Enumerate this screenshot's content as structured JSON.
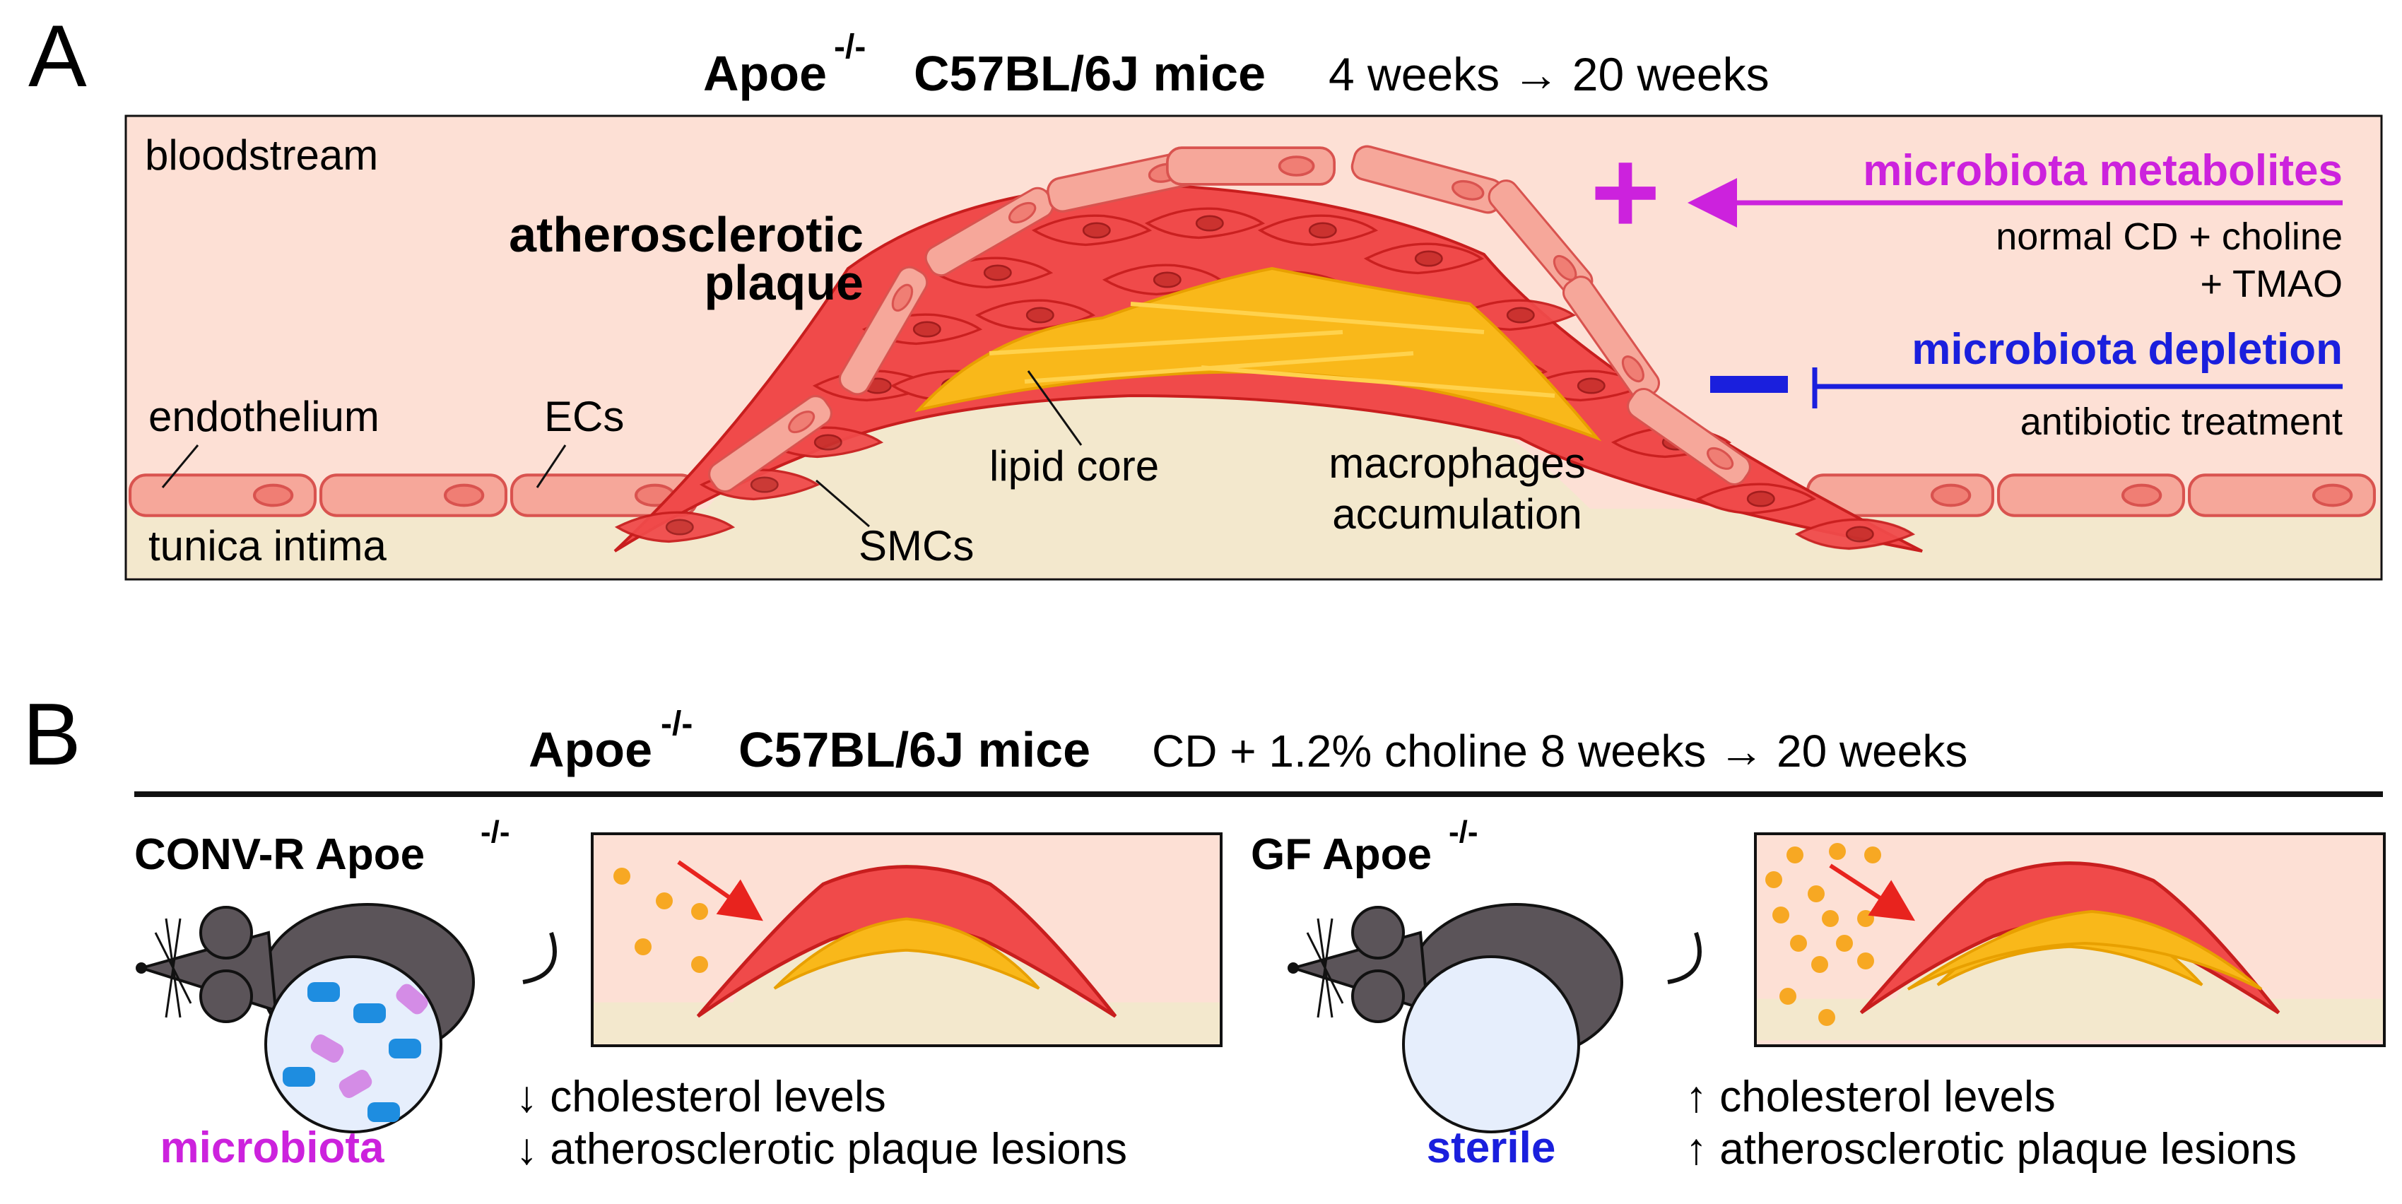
{
  "panelA": {
    "letter": "A",
    "title_bold": "Apoe",
    "title_sup": "-/-",
    "title_strain": "C57BL/6J mice",
    "title_time": "4 weeks → 20 weeks",
    "bloodstream": "bloodstream",
    "plaque_line1": "atherosclerotic",
    "plaque_line2": "plaque",
    "endothelium": "endothelium",
    "ecs": "ECs",
    "tunica": "tunica intima",
    "smcs": "SMCs",
    "lipid_core": "lipid core",
    "macro_line1": "macrophages",
    "macro_line2": "accumulation",
    "plus_sign": "+",
    "metabolites": "microbiota metabolites",
    "metab_sub1": "normal CD + choline",
    "metab_sub2": "+ TMAO",
    "minus_sign": "−",
    "depletion": "microbiota depletion",
    "depl_sub": "antibiotic treatment"
  },
  "panelB": {
    "letter": "B",
    "title_bold": "Apoe",
    "title_sup": "-/-",
    "title_strain": "C57BL/6J mice",
    "title_time": "CD + 1.2% choline 8 weeks → 20 weeks",
    "conv_label": "CONV-R Apoe",
    "conv_sup": "-/-",
    "gf_label": "GF Apoe",
    "gf_sup": "-/-",
    "microbiota": "microbiota",
    "sterile": "sterile",
    "conv_effect1": "↓ cholesterol levels",
    "conv_effect2": "↓ atherosclerotic plaque lesions",
    "gf_effect1": "↑ cholesterol levels",
    "gf_effect2": "↑ atherosclerotic plaque lesions"
  },
  "colors": {
    "lumen": "#fde0d5",
    "intima": "#f3e8cd",
    "cell_fill": "#f6a79a",
    "cell_stroke": "#d9534f",
    "smc_fill": "#f04a4a",
    "lipid": "#f9b81a",
    "magenta": "#cc22dd",
    "blue": "#1a1fdd",
    "mouse": "#5b5459"
  }
}
